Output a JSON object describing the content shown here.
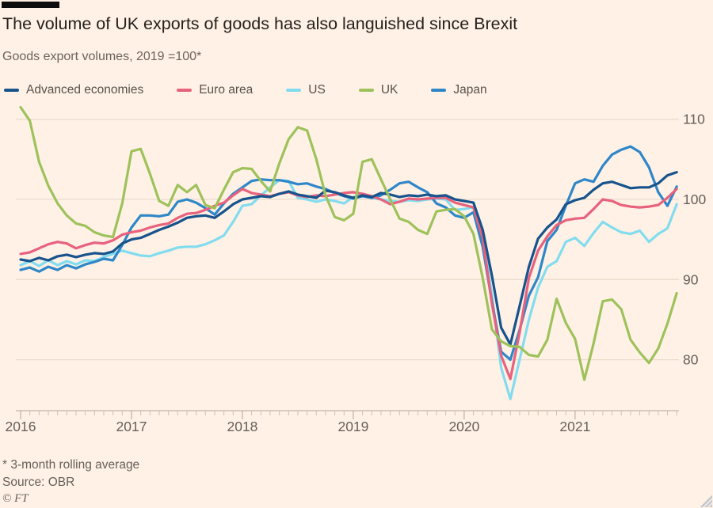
{
  "header": {
    "title": "The volume of UK exports of goods has also languished since Brexit",
    "subtitle": "Goods export volumes, 2019 =100*"
  },
  "footer": {
    "footnote": "* 3-month rolling average",
    "source": "Source: OBR",
    "ft_mark": "© FT"
  },
  "colors": {
    "background": "#fff1e5",
    "grid": "#eadccd",
    "axis": "#b3a596",
    "tick_minor": "#cfc0b1",
    "tick_major": "#b3a596",
    "axis_text": "#66605c"
  },
  "chart_data": {
    "type": "line",
    "title": "Goods export volumes, 2019 =100 (3-month rolling average)",
    "x_unit": "month",
    "x_start": "2016-01",
    "x_end": "2021-12",
    "xlabels": [
      "2016",
      "2017",
      "2018",
      "2019",
      "2020",
      "2021"
    ],
    "yticks": [
      80,
      90,
      100,
      110
    ],
    "ylim": [
      73.5,
      112.5
    ],
    "grid": "horizontal",
    "legend_position": "top",
    "draw_order": [
      "US",
      "Japan",
      "Euro area",
      "Advanced economies",
      "UK"
    ],
    "series": [
      {
        "name": "Advanced economies",
        "color": "#17538c",
        "values": [
          92.5,
          92.3,
          92.7,
          92.4,
          92.9,
          93.1,
          92.8,
          93.1,
          93.3,
          93.2,
          93.5,
          94.5,
          95.0,
          95.2,
          95.7,
          96.2,
          96.6,
          97.1,
          97.7,
          97.9,
          98.0,
          97.7,
          98.5,
          99.4,
          100.0,
          100.2,
          100.4,
          100.3,
          100.7,
          101.0,
          100.6,
          100.4,
          100.2,
          101.1,
          100.9,
          100.5,
          100.2,
          100.5,
          100.3,
          100.8,
          100.6,
          100.3,
          100.5,
          100.4,
          100.6,
          100.4,
          100.5,
          100.0,
          99.8,
          99.6,
          96.2,
          90.5,
          84.0,
          81.9,
          86.7,
          91.6,
          95.1,
          96.5,
          97.5,
          99.4,
          99.9,
          100.2,
          101.2,
          102.0,
          102.2,
          101.8,
          101.4,
          101.5,
          101.5,
          102.0,
          103.0,
          103.4
        ]
      },
      {
        "name": "Euro area",
        "color": "#e8627d",
        "values": [
          93.2,
          93.4,
          93.9,
          94.4,
          94.7,
          94.5,
          93.9,
          94.3,
          94.6,
          94.5,
          94.9,
          95.6,
          95.9,
          96.1,
          96.5,
          96.8,
          97.0,
          97.7,
          98.2,
          98.3,
          98.7,
          99.2,
          99.6,
          100.5,
          101.3,
          100.8,
          100.6,
          100.4,
          100.7,
          100.9,
          100.5,
          100.3,
          100.5,
          100.4,
          100.6,
          100.8,
          100.9,
          100.7,
          100.4,
          100.0,
          99.4,
          99.7,
          100.1,
          100.0,
          100.1,
          100.2,
          100.2,
          99.6,
          99.3,
          99.0,
          95.2,
          87.0,
          80.5,
          77.6,
          83.4,
          90.2,
          93.6,
          95.4,
          96.8,
          97.4,
          97.6,
          97.7,
          98.8,
          100.0,
          99.8,
          99.3,
          99.1,
          99.0,
          99.1,
          99.3,
          100.2,
          101.3
        ]
      },
      {
        "name": "US",
        "color": "#82dcef",
        "values": [
          91.8,
          92.3,
          91.7,
          92.4,
          91.8,
          92.3,
          91.9,
          92.4,
          92.3,
          92.8,
          93.2,
          93.6,
          93.3,
          93.0,
          92.9,
          93.3,
          93.6,
          94.0,
          94.1,
          94.1,
          94.4,
          94.9,
          95.5,
          97.2,
          99.2,
          99.4,
          100.5,
          101.5,
          102.4,
          102.3,
          100.2,
          100.0,
          99.7,
          100.0,
          99.8,
          99.5,
          100.3,
          100.4,
          100.2,
          100.0,
          99.8,
          99.7,
          99.9,
          99.8,
          100.0,
          100.1,
          100.0,
          98.7,
          98.8,
          99.0,
          95.7,
          88.0,
          79.0,
          75.1,
          80.0,
          85.0,
          89.0,
          91.6,
          92.3,
          94.7,
          95.2,
          94.2,
          95.8,
          97.2,
          96.5,
          95.9,
          95.7,
          96.1,
          94.7,
          95.7,
          96.4,
          99.4
        ]
      },
      {
        "name": "UK",
        "color": "#9ec25b",
        "values": [
          111.5,
          109.8,
          104.7,
          101.7,
          99.5,
          98.0,
          97.0,
          96.7,
          95.9,
          95.5,
          95.3,
          99.5,
          106.0,
          106.3,
          103.2,
          99.8,
          99.2,
          101.8,
          100.9,
          101.8,
          99.3,
          98.9,
          101.2,
          103.4,
          103.9,
          103.8,
          102.3,
          101.0,
          104.5,
          107.5,
          109.0,
          108.6,
          105.0,
          100.5,
          97.8,
          97.4,
          98.2,
          104.7,
          105.0,
          102.5,
          100.0,
          97.6,
          97.2,
          96.2,
          95.7,
          98.5,
          98.7,
          98.8,
          97.9,
          95.7,
          90.2,
          83.8,
          82.3,
          81.7,
          81.6,
          80.6,
          80.4,
          82.5,
          87.6,
          84.6,
          82.6,
          77.5,
          82.0,
          87.3,
          87.5,
          86.3,
          82.5,
          80.9,
          79.6,
          81.4,
          84.5,
          88.3
        ]
      },
      {
        "name": "Japan",
        "color": "#2e87c8",
        "values": [
          91.2,
          91.5,
          91.0,
          91.6,
          91.2,
          91.8,
          91.4,
          91.9,
          92.2,
          92.6,
          92.4,
          94.3,
          96.5,
          98.0,
          98.0,
          97.9,
          98.1,
          99.7,
          100.0,
          99.6,
          98.9,
          98.1,
          99.5,
          100.7,
          101.5,
          102.3,
          102.5,
          102.4,
          102.4,
          102.2,
          101.9,
          102.0,
          101.6,
          101.3,
          100.8,
          100.4,
          100.1,
          100.4,
          100.2,
          100.5,
          101.2,
          102.0,
          102.2,
          101.5,
          100.9,
          99.5,
          99.0,
          98.0,
          97.7,
          98.4,
          94.1,
          87.3,
          81.0,
          80.0,
          83.7,
          88.0,
          90.3,
          94.8,
          96.2,
          99.2,
          102.0,
          102.5,
          102.2,
          104.2,
          105.6,
          106.2,
          106.6,
          105.9,
          104.0,
          100.9,
          99.2,
          101.6
        ]
      }
    ]
  }
}
